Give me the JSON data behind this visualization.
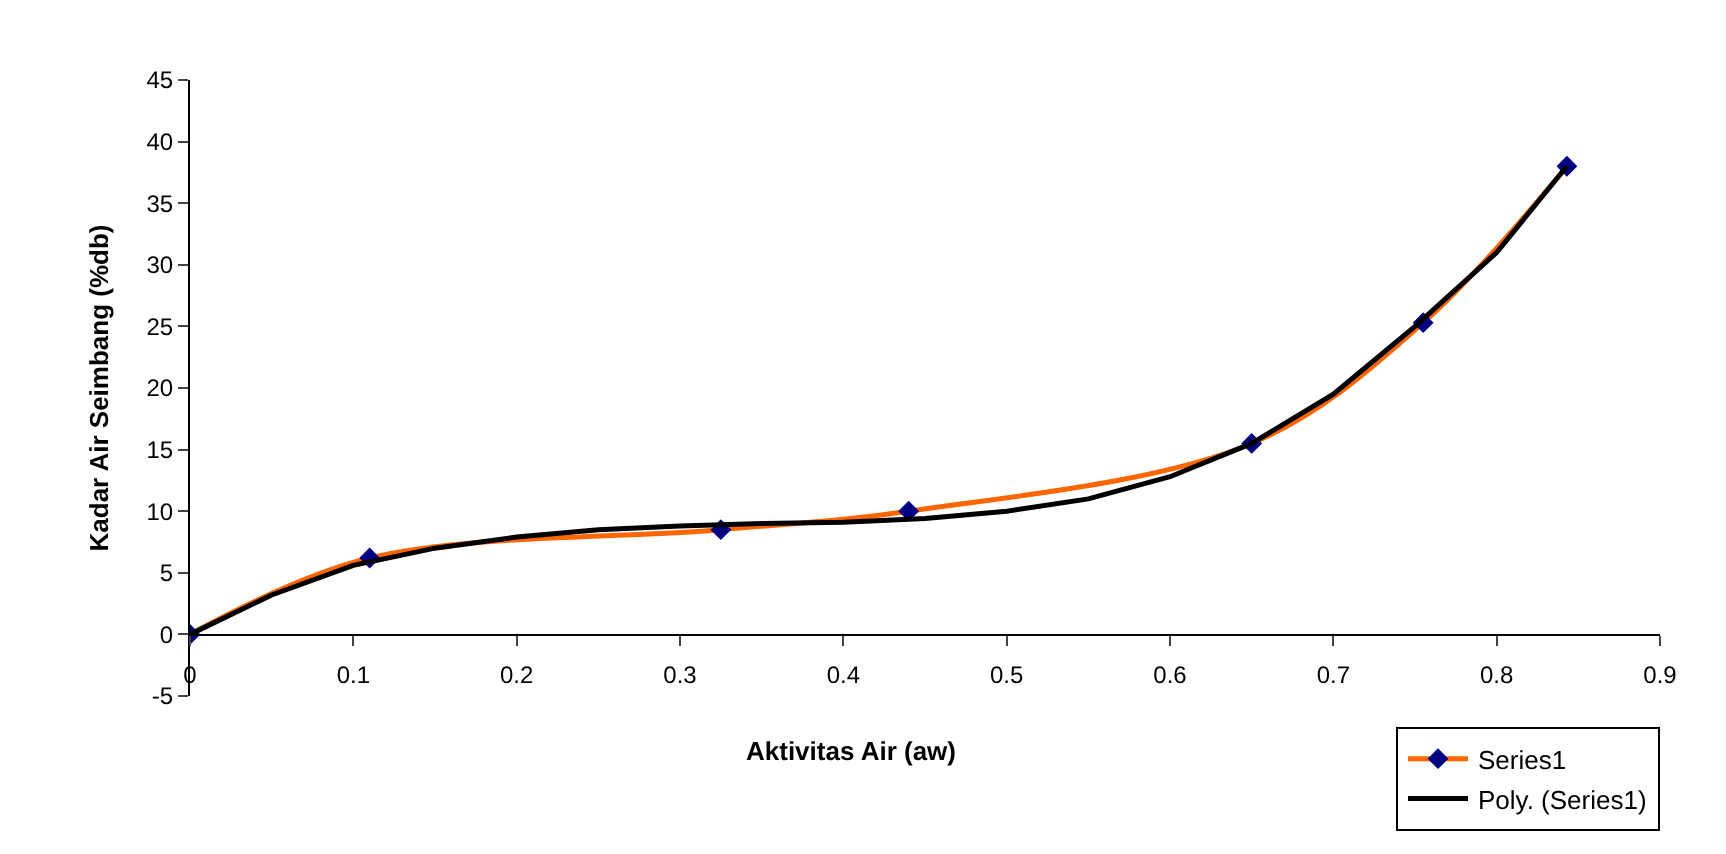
{
  "chart_data": {
    "type": "line",
    "xlabel": "Aktivitas Air (aw)",
    "ylabel": "Kadar Air Seimbang (%db)",
    "xlim": [
      0,
      0.9
    ],
    "xticks": [
      0,
      0.1,
      0.2,
      0.3,
      0.4,
      0.5,
      0.6,
      0.7,
      0.8,
      0.9
    ],
    "ylim": [
      -5,
      45
    ],
    "yticks": [
      -5,
      0,
      5,
      10,
      15,
      20,
      25,
      30,
      35,
      40,
      45
    ],
    "legend": "bottom right",
    "series": [
      {
        "name": "Series1",
        "marker": "diamond",
        "color": "#ff6600",
        "colors": [
          "#000080",
          "#000080",
          "#000080",
          "#000080",
          "#000080",
          "#000080",
          "#000080"
        ],
        "x": [
          0,
          0.11,
          0.325,
          0.44,
          0.65,
          0.755,
          0.843
        ],
        "values": [
          0,
          6.2,
          8.5,
          10,
          15.5,
          25.3,
          38
        ]
      },
      {
        "name": "Poly. (Series1)",
        "marker": "none",
        "color": "#000000",
        "x": [
          0,
          0.05,
          0.1,
          0.15,
          0.2,
          0.25,
          0.3,
          0.35,
          0.4,
          0.45,
          0.5,
          0.55,
          0.6,
          0.65,
          0.7,
          0.75,
          0.8,
          0.843
        ],
        "values": [
          0,
          3.2,
          5.6,
          7,
          7.9,
          8.5,
          8.8,
          9,
          9.1,
          9.4,
          10,
          11,
          12.8,
          15.5,
          19.5,
          25,
          31,
          38
        ]
      }
    ]
  }
}
